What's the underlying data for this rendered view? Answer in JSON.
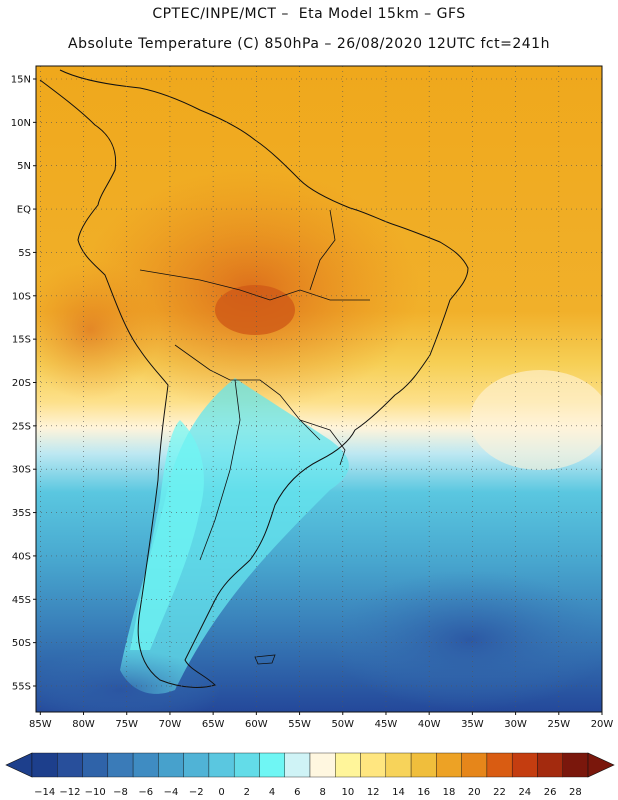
{
  "header": {
    "line1": "CPTEC/INPE/MCT –  Eta Model 15km – GFS",
    "line2": "Absolute Temperature (C) 850hPa – 26/08/2020 12UTC fct=241h"
  },
  "map": {
    "latitude_labels": [
      "15N",
      "10N",
      "5N",
      "EQ",
      "5S",
      "10S",
      "15S",
      "20S",
      "25S",
      "30S",
      "35S",
      "40S",
      "45S",
      "50S",
      "55S"
    ],
    "longitude_labels": [
      "85W",
      "80W",
      "75W",
      "70W",
      "65W",
      "60W",
      "55W",
      "50W",
      "45W",
      "40W",
      "35W",
      "30W",
      "25W",
      "20W"
    ],
    "lat_range": [
      -58,
      16.5
    ],
    "lon_range": [
      -85.5,
      -20
    ]
  },
  "colorbar": {
    "labels": [
      "-14",
      "-12",
      "-10",
      "-8",
      "-6",
      "-4",
      "-2",
      "0",
      "2",
      "4",
      "6",
      "8",
      "10",
      "12",
      "14",
      "16",
      "18",
      "20",
      "22",
      "24",
      "26",
      "28"
    ],
    "colors": [
      "#1d3f8c",
      "#284f9b",
      "#2f63a9",
      "#3a7bb8",
      "#3f8cc2",
      "#47a1cc",
      "#50b3d6",
      "#5ac7e0",
      "#63dce8",
      "#6ff6f4",
      "#cff3f6",
      "#fff7e0",
      "#fff59a",
      "#ffe680",
      "#f7d35a",
      "#f0be3c",
      "#eda225",
      "#e6861a",
      "#d95c12",
      "#c43d10",
      "#a32a0e",
      "#7a170c"
    ]
  }
}
